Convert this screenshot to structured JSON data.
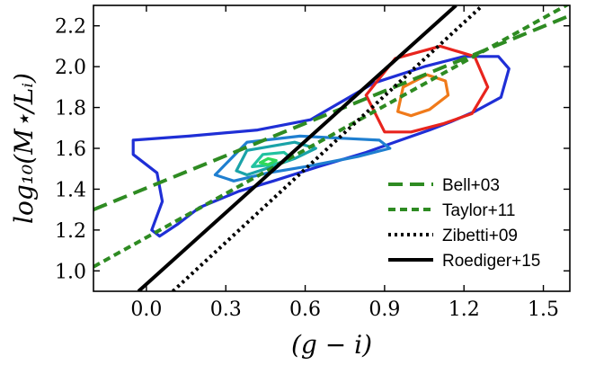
{
  "chart_data": {
    "type": "line",
    "xlabel": "(g − i)",
    "ylabel": "log₁₀(M⋆/Lᵢ)",
    "xlim": [
      -0.2,
      1.6
    ],
    "ylim": [
      0.9,
      2.3
    ],
    "xticks": [
      "0.0",
      "0.3",
      "0.6",
      "0.9",
      "1.2",
      "1.5"
    ],
    "yticks": [
      "1.0",
      "1.2",
      "1.4",
      "1.6",
      "1.8",
      "2.0",
      "2.2"
    ],
    "legend_position": "lower-right",
    "series": [
      {
        "name": "Bell+03",
        "style": "dashed",
        "color": "#2e8b22",
        "x": [
          -0.2,
          1.6
        ],
        "y": [
          1.3,
          2.25
        ]
      },
      {
        "name": "Taylor+11",
        "style": "dash-dot-short",
        "color": "#2e8b22",
        "x": [
          -0.2,
          1.6
        ],
        "y": [
          1.02,
          2.31
        ]
      },
      {
        "name": "Zibetti+09",
        "style": "dotted",
        "color": "#000000",
        "x": [
          0.1,
          1.27
        ],
        "y": [
          0.9,
          2.3
        ]
      },
      {
        "name": "Roediger+15",
        "style": "solid",
        "color": "#000000",
        "x": [
          -0.03,
          1.17
        ],
        "y": [
          0.9,
          2.3
        ]
      }
    ],
    "contours": [
      {
        "color": "#1f2fd6",
        "points": [
          [
            -0.05,
            1.64
          ],
          [
            0.16,
            1.66
          ],
          [
            0.42,
            1.69
          ],
          [
            0.62,
            1.74
          ],
          [
            0.86,
            1.92
          ],
          [
            1.05,
            2.0
          ],
          [
            1.2,
            2.05
          ],
          [
            1.33,
            2.05
          ],
          [
            1.37,
            1.99
          ],
          [
            1.34,
            1.85
          ],
          [
            1.24,
            1.78
          ],
          [
            1.15,
            1.73
          ],
          [
            1.07,
            1.69
          ],
          [
            0.96,
            1.64
          ],
          [
            0.83,
            1.58
          ],
          [
            0.65,
            1.51
          ],
          [
            0.48,
            1.44
          ],
          [
            0.35,
            1.39
          ],
          [
            0.2,
            1.31
          ],
          [
            0.12,
            1.23
          ],
          [
            0.05,
            1.17
          ],
          [
            0.02,
            1.2
          ],
          [
            0.06,
            1.34
          ],
          [
            0.04,
            1.48
          ],
          [
            -0.05,
            1.57
          ]
        ]
      },
      {
        "color": "#1f7fd0",
        "points": [
          [
            0.26,
            1.47
          ],
          [
            0.38,
            1.63
          ],
          [
            0.58,
            1.66
          ],
          [
            0.88,
            1.64
          ],
          [
            0.92,
            1.6
          ],
          [
            0.8,
            1.56
          ],
          [
            0.6,
            1.51
          ],
          [
            0.46,
            1.48
          ],
          [
            0.33,
            1.44
          ]
        ]
      },
      {
        "color": "#1aa3a8",
        "points": [
          [
            0.34,
            1.49
          ],
          [
            0.38,
            1.59
          ],
          [
            0.56,
            1.63
          ],
          [
            0.64,
            1.6
          ],
          [
            0.56,
            1.55
          ],
          [
            0.45,
            1.5
          ],
          [
            0.38,
            1.47
          ]
        ]
      },
      {
        "color": "#22c2a0",
        "points": [
          [
            0.4,
            1.51
          ],
          [
            0.44,
            1.57
          ],
          [
            0.52,
            1.58
          ],
          [
            0.55,
            1.55
          ],
          [
            0.48,
            1.52
          ]
        ]
      },
      {
        "color": "#2fd95a",
        "points": [
          [
            0.43,
            1.53
          ],
          [
            0.46,
            1.55
          ],
          [
            0.49,
            1.54
          ],
          [
            0.46,
            1.52
          ]
        ]
      },
      {
        "color": "#e8241d",
        "points": [
          [
            0.9,
            1.68
          ],
          [
            0.83,
            1.86
          ],
          [
            0.94,
            2.04
          ],
          [
            1.11,
            2.1
          ],
          [
            1.24,
            2.05
          ],
          [
            1.29,
            1.9
          ],
          [
            1.23,
            1.77
          ],
          [
            1.12,
            1.72
          ],
          [
            1.0,
            1.68
          ]
        ]
      },
      {
        "color": "#f07a1a",
        "points": [
          [
            0.95,
            1.78
          ],
          [
            0.97,
            1.9
          ],
          [
            1.06,
            1.96
          ],
          [
            1.13,
            1.93
          ],
          [
            1.14,
            1.86
          ],
          [
            1.07,
            1.79
          ],
          [
            1.0,
            1.76
          ]
        ]
      }
    ],
    "grid": false
  }
}
